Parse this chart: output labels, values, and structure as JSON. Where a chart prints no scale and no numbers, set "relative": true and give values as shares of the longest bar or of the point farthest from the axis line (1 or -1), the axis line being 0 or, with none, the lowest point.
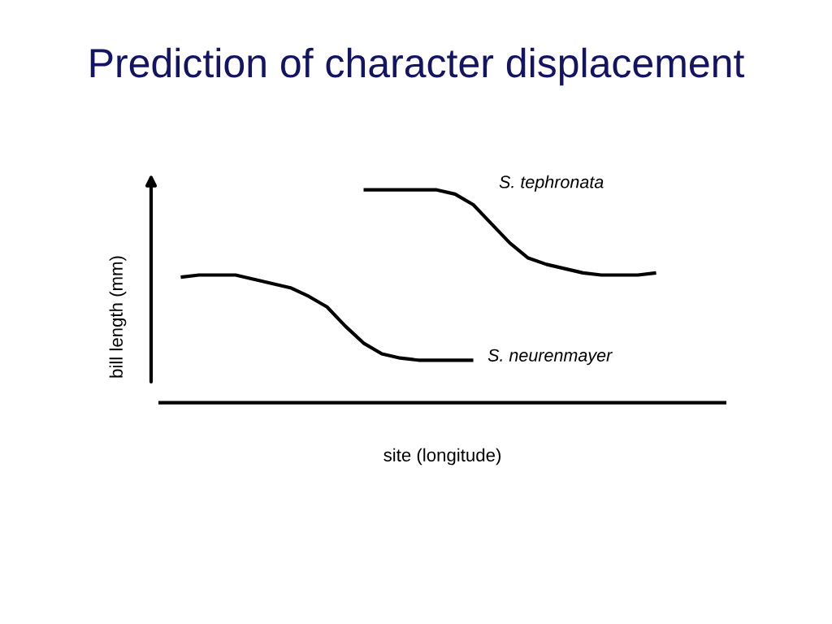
{
  "chart_data": {
    "type": "line",
    "title": "Prediction of character displacement",
    "xlabel": "site (longitude)",
    "ylabel": "bill length (mm)",
    "relative": true,
    "tick_labels": false,
    "categories": [
      null,
      null,
      null,
      null,
      null,
      null,
      null,
      null,
      null,
      null,
      null,
      null,
      null,
      null,
      null,
      null,
      null,
      null,
      null,
      null,
      null,
      null,
      null,
      null,
      null,
      null,
      null,
      null,
      null,
      null
    ],
    "series": [
      {
        "name": "S. neurenmayer",
        "color": "#000000",
        "values": [
          0.59,
          0.6,
          0.6,
          0.6,
          0.58,
          0.56,
          0.54,
          0.5,
          0.45,
          0.36,
          0.28,
          0.23,
          0.21,
          0.2,
          0.2,
          0.2,
          0.2,
          null,
          null,
          null,
          null,
          null,
          null,
          null,
          null,
          null,
          null,
          null,
          null,
          null
        ]
      },
      {
        "name": "S. tephronata",
        "color": "#000000",
        "values": [
          null,
          null,
          null,
          null,
          null,
          null,
          null,
          null,
          null,
          null,
          1.0,
          1.0,
          1.0,
          1.0,
          1.0,
          0.98,
          0.93,
          0.84,
          0.75,
          0.68,
          0.65,
          0.63,
          0.61,
          0.6,
          0.6,
          0.6,
          0.61,
          null,
          null,
          null
        ]
      }
    ]
  }
}
